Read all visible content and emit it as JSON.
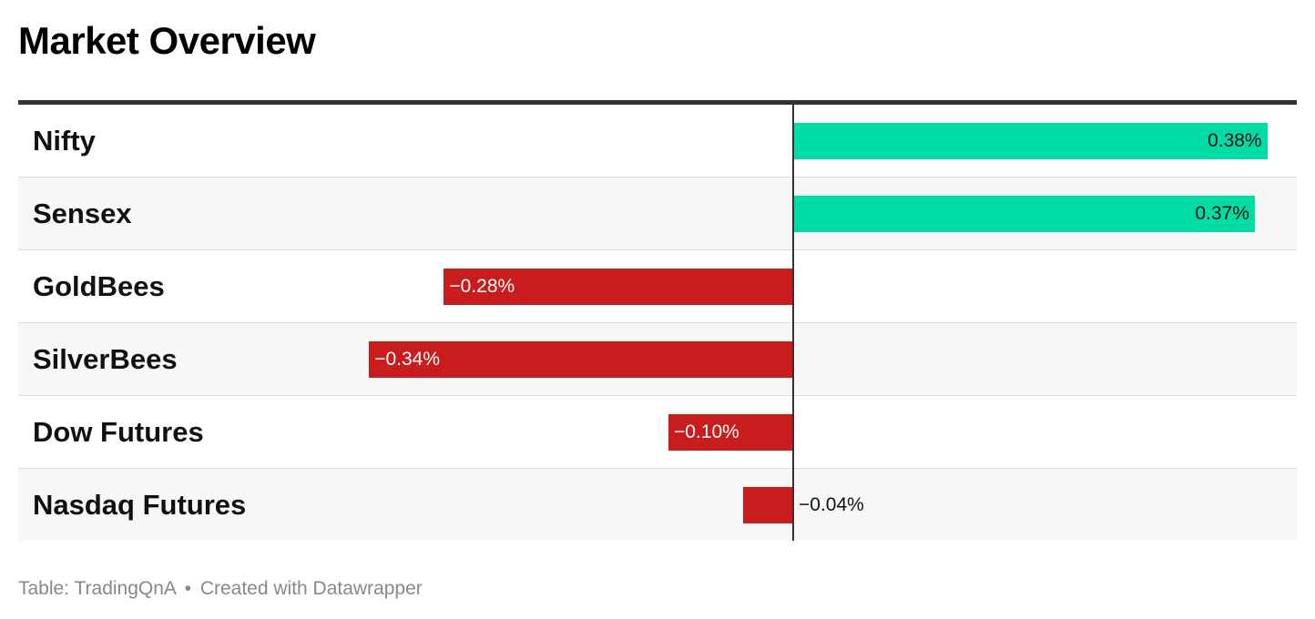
{
  "title": "Market Overview",
  "footer": {
    "source": "Table: TradingQnA",
    "separator": "•",
    "credit": "Created with Datawrapper"
  },
  "colors": {
    "positive": "#00dca5",
    "negative": "#c91d1d",
    "axis": "#333333"
  },
  "chart_data": {
    "type": "bar",
    "orientation": "horizontal",
    "categories": [
      "Nifty",
      "Sensex",
      "GoldBees",
      "SilverBees",
      "Dow Futures",
      "Nasdaq Futures"
    ],
    "values": [
      0.38,
      0.37,
      -0.28,
      -0.34,
      -0.1,
      -0.04
    ],
    "value_labels": [
      "0.38%",
      "0.37%",
      "−0.28%",
      "−0.34%",
      "−0.10%",
      "−0.04%"
    ],
    "unit": "%",
    "xlim": [
      -0.62,
      0.4
    ]
  }
}
